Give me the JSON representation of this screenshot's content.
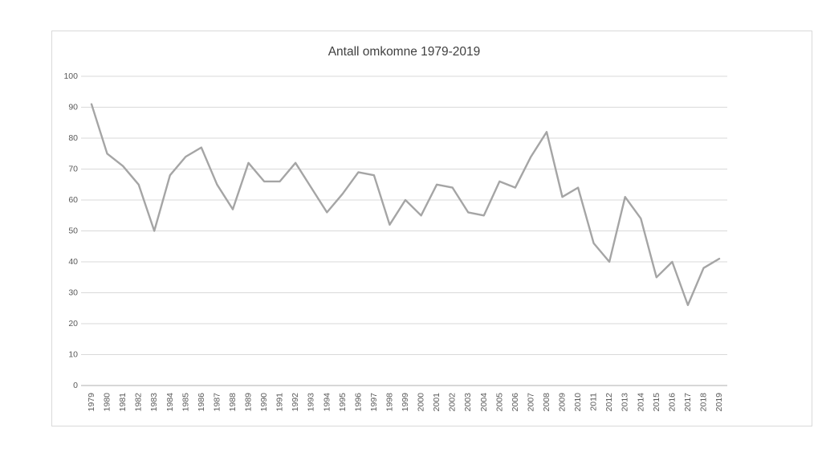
{
  "chart": {
    "colors": {
      "line": "#a5a5a5",
      "gridline": "#d9d9d9",
      "axis_line": "#bfbfbf",
      "tick_label": "#595959",
      "title_text": "#404040",
      "frame_border": "#d9d9d9",
      "background": "#ffffff"
    }
  },
  "chart_data": {
    "type": "line",
    "title": "Antall omkomne 1979-2019",
    "xlabel": "",
    "ylabel": "",
    "legend": false,
    "grid": true,
    "ylim": [
      0,
      100
    ],
    "ytick_step": 10,
    "x": [
      1979,
      1980,
      1981,
      1982,
      1983,
      1984,
      1985,
      1986,
      1987,
      1988,
      1989,
      1990,
      1991,
      1992,
      1993,
      1994,
      1995,
      1996,
      1997,
      1998,
      1999,
      2000,
      2001,
      2002,
      2003,
      2004,
      2005,
      2006,
      2007,
      2008,
      2009,
      2010,
      2011,
      2012,
      2013,
      2014,
      2015,
      2016,
      2017,
      2018,
      2019
    ],
    "values": [
      91,
      75,
      71,
      65,
      50,
      68,
      74,
      77,
      65,
      57,
      72,
      66,
      66,
      72,
      64,
      56,
      62,
      69,
      68,
      52,
      60,
      55,
      65,
      64,
      56,
      55,
      66,
      64,
      74,
      82,
      61,
      64,
      46,
      40,
      61,
      54,
      35,
      40,
      26,
      38,
      41
    ]
  }
}
